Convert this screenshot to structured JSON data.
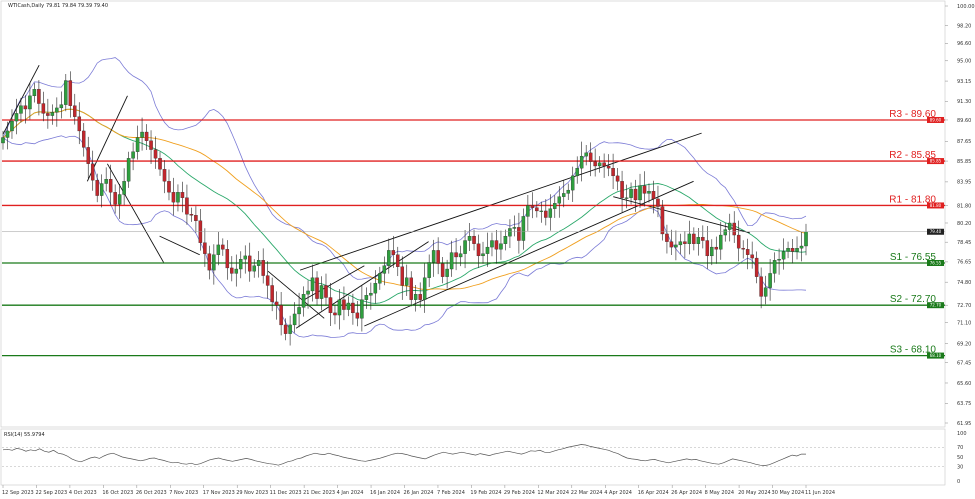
{
  "header": {
    "symbol": "WTICash,Daily",
    "ohlc": "79.81 79.84 79.39 79.40",
    "rsi_label": "RSI(14) 55.9794"
  },
  "chart_data": [
    {
      "type": "candlestick",
      "title": "WTICash,Daily",
      "ylim": [
        61.95,
        100.0
      ],
      "y_ticks": [
        "100.00",
        "98.20",
        "96.60",
        "95.00",
        "93.15",
        "91.30",
        "89.60",
        "87.65",
        "85.85",
        "83.95",
        "81.80",
        "80.20",
        "78.45",
        "76.65",
        "74.80",
        "72.70",
        "71.10",
        "69.20",
        "67.45",
        "65.60",
        "63.75",
        "61.95"
      ],
      "x_ticks": [
        "12 Sep 2023",
        "22 Sep 2023",
        "4 Oct 2023",
        "16 Oct 2023",
        "26 Oct 2023",
        "7 Nov 2023",
        "17 Nov 2023",
        "29 Nov 2023",
        "11 Dec 2023",
        "21 Dec 2023",
        "4 Jan 2024",
        "16 Jan 2024",
        "26 Jan 2024",
        "7 Feb 2024",
        "19 Feb 2024",
        "29 Feb 2024",
        "12 Mar 2024",
        "22 Mar 2024",
        "4 Apr 2024",
        "16 Apr 2024",
        "26 Apr 2024",
        "8 May 2024",
        "20 May 2024",
        "30 May 2024",
        "11 Jun 2024"
      ],
      "levels": [
        {
          "label": "R3 - 89.60",
          "value": 89.6,
          "tag": "89.60",
          "color": "#e02020"
        },
        {
          "label": "R2 - 85.85",
          "value": 85.85,
          "tag": "85.85",
          "color": "#e02020"
        },
        {
          "label": "R1 - 81.80",
          "value": 81.8,
          "tag": "81.80",
          "color": "#e02020"
        },
        {
          "label": "S1 - 76.55",
          "value": 76.55,
          "tag": "76.55",
          "color": "#1a7a1a"
        },
        {
          "label": "S2 - 72.70",
          "value": 72.7,
          "tag": "72.70",
          "color": "#1a7a1a"
        },
        {
          "label": "S3 - 68.10",
          "value": 68.1,
          "tag": "68.10",
          "color": "#1a7a1a"
        }
      ],
      "last_price": {
        "value": 79.4,
        "tag": "79.40"
      },
      "closes": [
        88.0,
        88.6,
        89.5,
        90.2,
        90.9,
        90.6,
        91.8,
        92.4,
        91.1,
        90.2,
        90.0,
        90.3,
        90.7,
        91.0,
        93.2,
        90.9,
        89.9,
        88.6,
        87.1,
        85.6,
        84.1,
        82.7,
        83.8,
        84.2,
        83.0,
        81.9,
        82.8,
        84.0,
        86.1,
        86.7,
        88.0,
        88.5,
        87.7,
        86.9,
        86.1,
        85.1,
        84.0,
        83.0,
        82.1,
        83.0,
        82.5,
        81.0,
        80.9,
        80.4,
        78.4,
        77.4,
        75.9,
        77.3,
        78.2,
        77.8,
        76.1,
        75.6,
        76.0,
        76.9,
        77.2,
        75.8,
        76.3,
        76.8,
        75.4,
        74.5,
        73.0,
        72.7,
        70.9,
        70.1,
        70.9,
        71.9,
        72.5,
        73.7,
        74.0,
        75.2,
        73.3,
        74.5,
        73.4,
        72.0,
        71.8,
        73.2,
        72.3,
        72.9,
        72.0,
        71.5,
        73.2,
        73.6,
        73.8,
        74.7,
        75.6,
        76.3,
        77.7,
        77.3,
        76.2,
        74.5,
        75.2,
        73.2,
        73.7,
        73.2,
        75.2,
        76.6,
        77.7,
        76.5,
        75.3,
        76.0,
        77.5,
        77.1,
        77.4,
        78.6,
        79.0,
        78.3,
        77.2,
        77.4,
        78.0,
        78.6,
        77.8,
        78.3,
        79.0,
        79.7,
        79.8,
        78.6,
        80.8,
        81.8,
        81.6,
        81.3,
        81.3,
        80.7,
        81.5,
        82.0,
        82.6,
        82.9,
        83.2,
        84.5,
        85.2,
        86.3,
        86.6,
        85.8,
        85.4,
        85.7,
        85.4,
        85.2,
        84.5,
        84.0,
        82.5,
        82.5,
        83.3,
        82.3,
        83.6,
        82.9,
        83.1,
        82.4,
        81.7,
        79.2,
        78.5,
        78.0,
        78.2,
        78.5,
        78.3,
        79.2,
        78.3,
        78.9,
        78.6,
        77.2,
        78.0,
        77.8,
        79.1,
        79.6,
        80.2,
        79.1,
        77.9,
        77.8,
        77.3,
        77.0,
        75.3,
        73.5,
        74.3,
        75.6,
        76.8,
        76.9,
        77.6,
        77.9,
        77.6,
        77.9,
        78.1,
        79.4
      ]
    },
    {
      "type": "line",
      "title": "RSI(14) 55.9794",
      "ylim": [
        0,
        100
      ],
      "y_ticks": [
        "100",
        "70",
        "50",
        "30",
        "0"
      ],
      "values": [
        65,
        66,
        64,
        68,
        66,
        62,
        65,
        63,
        67,
        62,
        60,
        64,
        58,
        56,
        52,
        46,
        42,
        40,
        44,
        48,
        50,
        47,
        52,
        56,
        58,
        54,
        50,
        48,
        46,
        44,
        42,
        44,
        47,
        48,
        45,
        43,
        40,
        38,
        39,
        36,
        35,
        37,
        34,
        36,
        40,
        44,
        46,
        48,
        45,
        43,
        41,
        43,
        45,
        47,
        45,
        42,
        40,
        38,
        36,
        35,
        33,
        36,
        40,
        42,
        46,
        48,
        52,
        55,
        58,
        56,
        55,
        58,
        55,
        53,
        50,
        48,
        46,
        44,
        42,
        41,
        43,
        45,
        47,
        50,
        53,
        56,
        58,
        57,
        55,
        52,
        50,
        48,
        46,
        50,
        54,
        57,
        60,
        58,
        56,
        58,
        60,
        58,
        56,
        54,
        57,
        55,
        53,
        56,
        58,
        60,
        62,
        60,
        58,
        56,
        59,
        63,
        62,
        64,
        60,
        59,
        62,
        65,
        67,
        70,
        72,
        74,
        76,
        75,
        72,
        70,
        68,
        66,
        64,
        60,
        57,
        52,
        48,
        46,
        45,
        43,
        42,
        44,
        45,
        42,
        40,
        38,
        40,
        42,
        44,
        46,
        44,
        45,
        42,
        40,
        38,
        36,
        35,
        38,
        42,
        46,
        44,
        42,
        40,
        38,
        35,
        33,
        32,
        34,
        38,
        42,
        46,
        50,
        54,
        52,
        56,
        56
      ]
    }
  ]
}
